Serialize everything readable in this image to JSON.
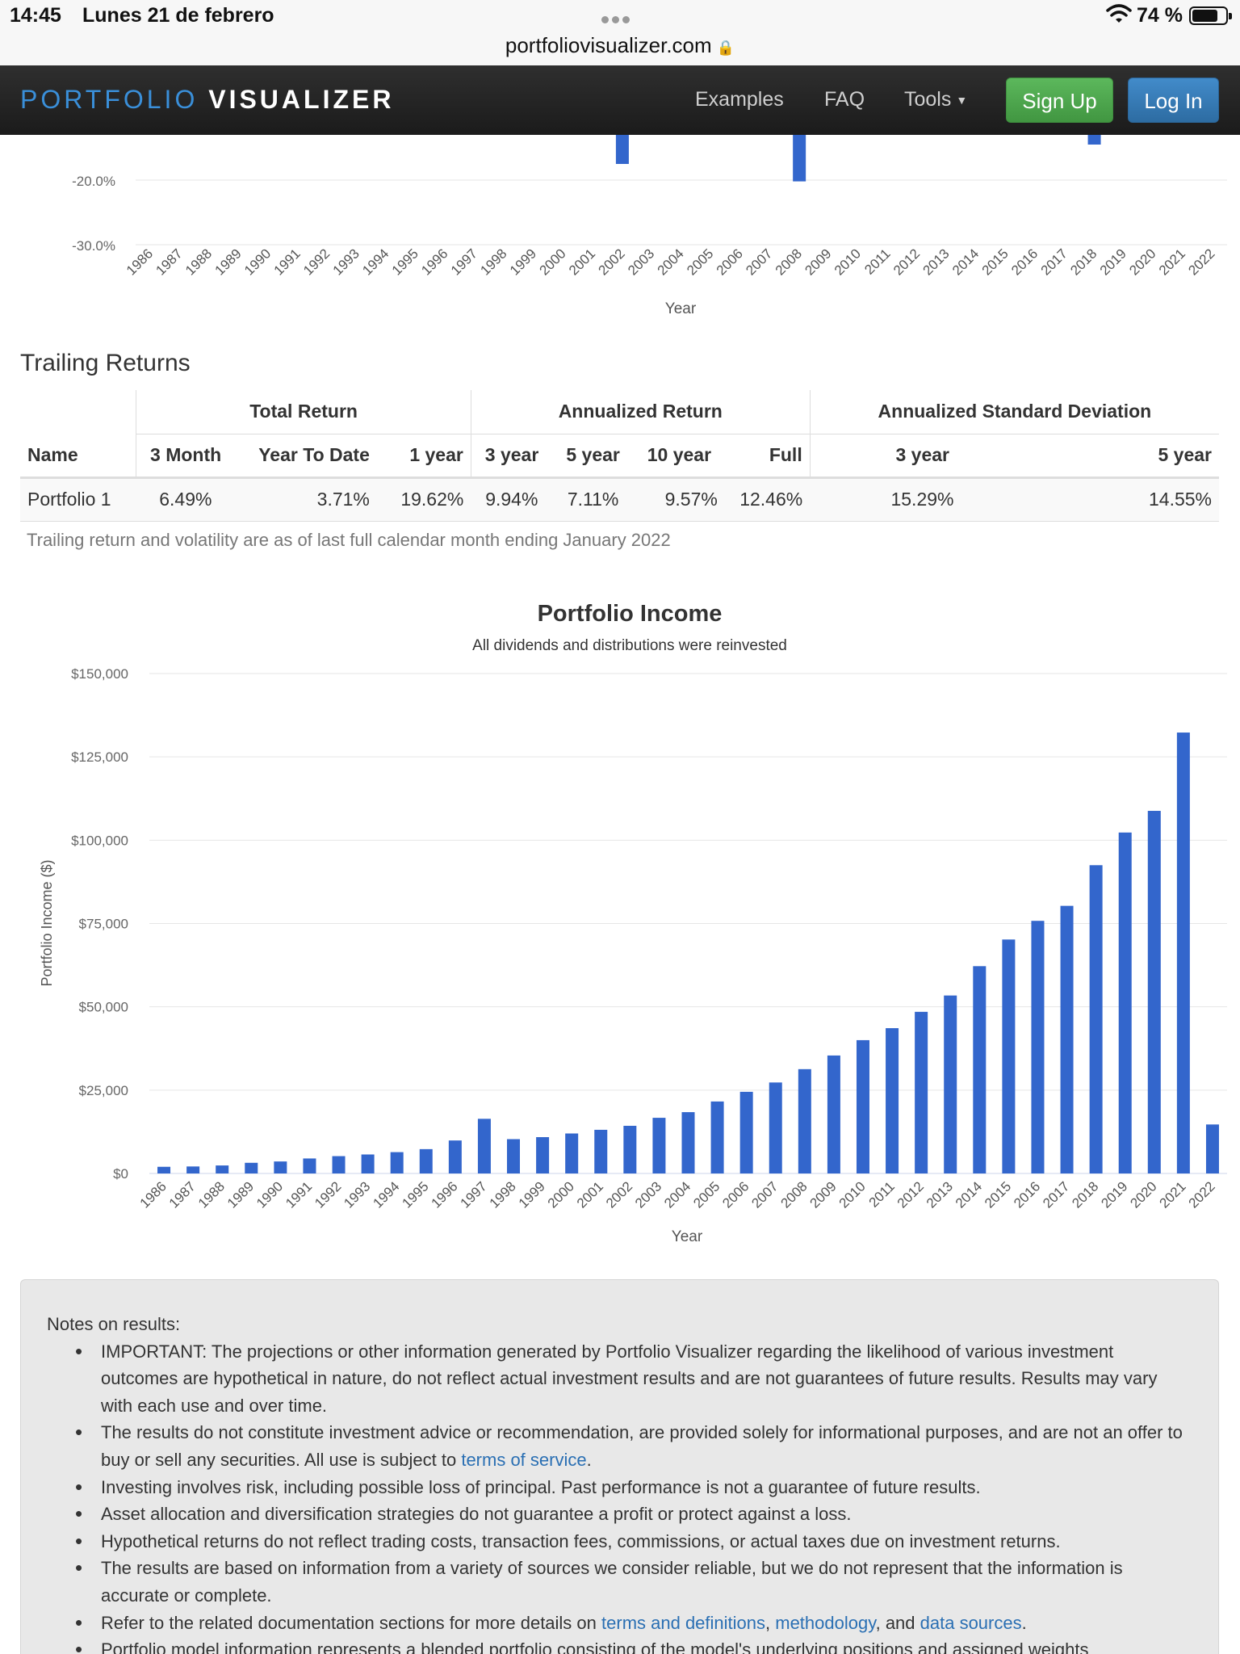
{
  "status_bar": {
    "time": "14:45",
    "date": "Lunes 21 de febrero",
    "url": "portfoliovisualizer.com",
    "battery": "74 %"
  },
  "navbar": {
    "brand_part1": "PORTFOLIO",
    "brand_part2": "VISUALIZER",
    "links": [
      "Examples",
      "FAQ",
      "Tools"
    ],
    "signup_label": "Sign Up",
    "login_label": "Log In"
  },
  "colors": {
    "bar": "#3366cc",
    "link": "#2a6fb3",
    "signup": "#4cae4c",
    "login": "#337ab7"
  },
  "trailing_returns": {
    "title": "Trailing Returns",
    "group_headers": [
      "Total Return",
      "Annualized Return",
      "Annualized Standard Deviation"
    ],
    "columns": [
      "Name",
      "3 Month",
      "Year To Date",
      "1 year",
      "3 year",
      "5 year",
      "10 year",
      "Full",
      "3 year",
      "5 year"
    ],
    "rows": [
      [
        "Portfolio 1",
        "6.49%",
        "3.71%",
        "19.62%",
        "9.94%",
        "7.11%",
        "9.57%",
        "12.46%",
        "15.29%",
        "14.55%"
      ]
    ],
    "footnote": "Trailing return and volatility are as of last full calendar month ending January 2022"
  },
  "chart_data": [
    {
      "type": "bar",
      "partial": true,
      "xlabel": "Year",
      "y_tick_labels": [
        "-20.0%",
        "-30.0%"
      ],
      "categories": [
        "1986",
        "1987",
        "1988",
        "1989",
        "1990",
        "1991",
        "1992",
        "1993",
        "1994",
        "1995",
        "1996",
        "1997",
        "1998",
        "1999",
        "2000",
        "2001",
        "2002",
        "2003",
        "2004",
        "2005",
        "2006",
        "2007",
        "2008",
        "2009",
        "2010",
        "2011",
        "2012",
        "2013",
        "2014",
        "2015",
        "2016",
        "2017",
        "2018",
        "2019",
        "2020",
        "2021",
        "2022"
      ],
      "visible_bars": [
        {
          "category": "2002",
          "value": -17.5
        },
        {
          "category": "2008",
          "value": -20.2
        },
        {
          "category": "2018",
          "value": -14.5
        }
      ],
      "ylim": [
        -30,
        -12
      ]
    },
    {
      "type": "bar",
      "title": "Portfolio Income",
      "subtitle": "All dividends and distributions were reinvested",
      "xlabel": "Year",
      "ylabel": "Portfolio Income ($)",
      "ylim": [
        0,
        150000
      ],
      "y_ticks": [
        0,
        25000,
        50000,
        75000,
        100000,
        125000,
        150000
      ],
      "y_tick_labels": [
        "$0",
        "$25,000",
        "$50,000",
        "$75,000",
        "$100,000",
        "$125,000",
        "$150,000"
      ],
      "categories": [
        "1986",
        "1987",
        "1988",
        "1989",
        "1990",
        "1991",
        "1992",
        "1993",
        "1994",
        "1995",
        "1996",
        "1997",
        "1998",
        "1999",
        "2000",
        "2001",
        "2002",
        "2003",
        "2004",
        "2005",
        "2006",
        "2007",
        "2008",
        "2009",
        "2010",
        "2011",
        "2012",
        "2013",
        "2014",
        "2015",
        "2016",
        "2017",
        "2018",
        "2019",
        "2020",
        "2021",
        "2022"
      ],
      "values": [
        2000,
        2100,
        2400,
        3200,
        3600,
        4500,
        5200,
        5700,
        6400,
        7300,
        9900,
        16400,
        10300,
        10900,
        12000,
        13100,
        14300,
        16700,
        18400,
        21600,
        24500,
        27300,
        31300,
        35400,
        40000,
        43600,
        48500,
        53400,
        62200,
        70200,
        75800,
        80300,
        92500,
        102300,
        108800,
        132300,
        14700
      ]
    }
  ],
  "notes": {
    "title": "Notes on results:",
    "items": [
      {
        "parts": [
          {
            "text": "IMPORTANT: The projections or other information generated by Portfolio Visualizer regarding the likelihood of various investment outcomes are hypothetical in nature, do not reflect actual investment results and are not guarantees of future results. Results may vary with each use and over time."
          }
        ]
      },
      {
        "parts": [
          {
            "text": "The results do not constitute investment advice or recommendation, are provided solely for informational purposes, and are not an offer to buy or sell any securities. All use is subject to "
          },
          {
            "text": "terms of service",
            "link": true
          },
          {
            "text": "."
          }
        ]
      },
      {
        "parts": [
          {
            "text": "Investing involves risk, including possible loss of principal. Past performance is not a guarantee of future results."
          }
        ]
      },
      {
        "parts": [
          {
            "text": "Asset allocation and diversification strategies do not guarantee a profit or protect against a loss."
          }
        ]
      },
      {
        "parts": [
          {
            "text": "Hypothetical returns do not reflect trading costs, transaction fees, commissions, or actual taxes due on investment returns."
          }
        ]
      },
      {
        "parts": [
          {
            "text": "The results are based on information from a variety of sources we consider reliable, but we do not represent that the information is accurate or complete."
          }
        ]
      },
      {
        "parts": [
          {
            "text": "Refer to the related documentation sections for more details on "
          },
          {
            "text": "terms and definitions",
            "link": true
          },
          {
            "text": ", "
          },
          {
            "text": "methodology",
            "link": true
          },
          {
            "text": ", and "
          },
          {
            "text": "data sources",
            "link": true
          },
          {
            "text": "."
          }
        ]
      },
      {
        "parts": [
          {
            "text": "Portfolio model information represents a blended portfolio consisting of the model's underlying positions and assigned weights"
          }
        ]
      }
    ]
  }
}
